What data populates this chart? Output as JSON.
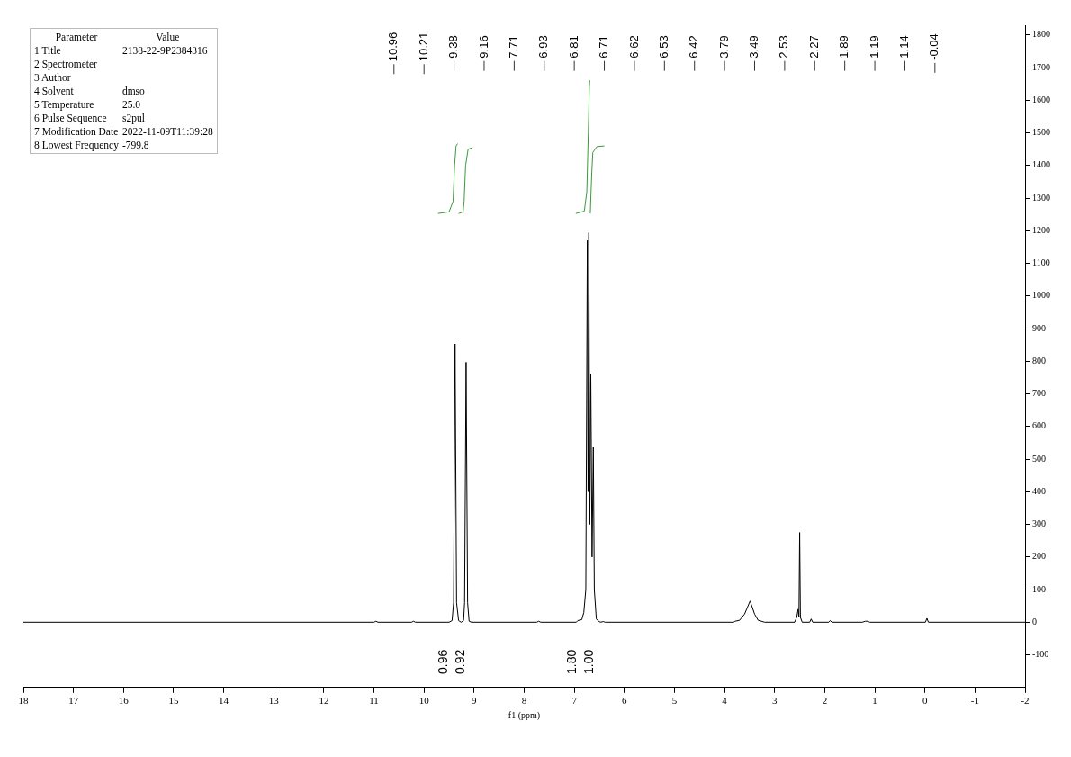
{
  "chart_data": [
    {
      "type": "line",
      "xlabel": "f1 (ppm)",
      "xlim": [
        18,
        -2
      ],
      "xticks": [
        18,
        17,
        16,
        15,
        14,
        13,
        12,
        11,
        10,
        9,
        8,
        7,
        6,
        5,
        4,
        3,
        2,
        1,
        0,
        -1,
        -2
      ],
      "ylim": [
        -200,
        1830
      ],
      "yticks": [
        -100,
        0,
        100,
        200,
        300,
        400,
        500,
        600,
        700,
        800,
        900,
        1000,
        1100,
        1200,
        1300,
        1400,
        1500,
        1600,
        1700,
        1800
      ],
      "legend": false,
      "marker": "none",
      "line_style": "solid",
      "series": [
        {
          "color": "#000000",
          "x": [
            18,
            11,
            10.96,
            10.92,
            10.25,
            10.21,
            10.17,
            9.5,
            9.44,
            9.41,
            9.38,
            9.35,
            9.31,
            9.26,
            9.21,
            9.19,
            9.16,
            9.13,
            9.1,
            9.05,
            7.75,
            7.71,
            7.67,
            6.96,
            6.93,
            6.85,
            6.81,
            6.77,
            6.74,
            6.725,
            6.71,
            6.69,
            6.67,
            6.645,
            6.62,
            6.6,
            6.56,
            6.53,
            6.48,
            6.42,
            6.38,
            3.82,
            3.79,
            3.7,
            3.6,
            3.49,
            3.4,
            3.33,
            3.2,
            2.6,
            2.56,
            2.53,
            2.515,
            2.5,
            2.485,
            2.45,
            2.3,
            2.27,
            2.24,
            1.92,
            1.89,
            1.86,
            1.25,
            1.19,
            1.14,
            1.1,
            -0.01,
            -0.04,
            -0.07,
            -2
          ],
          "values": [
            0,
            0,
            3,
            0,
            0,
            3,
            0,
            0,
            5,
            60,
            853,
            60,
            5,
            0,
            5,
            60,
            797,
            60,
            3,
            0,
            0,
            3,
            0,
            0,
            5,
            8,
            30,
            100,
            1170,
            400,
            1194,
            300,
            760,
            200,
            536,
            100,
            10,
            5,
            0,
            2,
            0,
            0,
            3,
            6,
            25,
            65,
            25,
            6,
            0,
            0,
            15,
            40,
            15,
            275,
            15,
            0,
            0,
            10,
            0,
            0,
            5,
            0,
            0,
            3,
            3,
            0,
            0,
            12,
            0,
            0
          ]
        },
        {
          "color": "#3a9a3a",
          "x": [
            9.72,
            9.5,
            9.42,
            9.39,
            9.36,
            9.33
          ],
          "values": [
            1253,
            1258,
            1290,
            1400,
            1460,
            1467
          ]
        },
        {
          "color": "#3a9a3a",
          "x": [
            9.31,
            9.22,
            9.2,
            9.17,
            9.12,
            9.03
          ],
          "values": [
            1253,
            1258,
            1290,
            1400,
            1450,
            1455
          ]
        },
        {
          "color": "#3a9a3a",
          "x": [
            6.97,
            6.8,
            6.75,
            6.72,
            6.7,
            6.69
          ],
          "values": [
            1253,
            1260,
            1320,
            1500,
            1640,
            1661
          ]
        },
        {
          "color": "#3a9a3a",
          "x": [
            6.68,
            6.67,
            6.65,
            6.63,
            6.55,
            6.4
          ],
          "values": [
            1253,
            1300,
            1380,
            1440,
            1458,
            1460
          ]
        }
      ],
      "annotations": [
        "10.96",
        "10.21",
        "9.38",
        "9.16",
        "7.71",
        "6.93",
        "6.81",
        "6.71",
        "6.62",
        "6.53",
        "6.42",
        "3.79",
        "3.49",
        "2.53",
        "2.27",
        "1.89",
        "1.19",
        "1.14",
        "-0.04"
      ]
    },
    {
      "type": "other",
      "annotations": [
        "0.96",
        "0.92",
        "1.80",
        "1.00"
      ]
    },
    {
      "type": "other",
      "annotations": [
        "Parameter\tValue",
        "1 Title\t2138-22-9P2384316",
        "2 Spectrometer",
        "3 Author",
        "4 Solvent\tdmso",
        "5 Temperature\t25.0",
        "6 Pulse Sequence\ts2pul",
        "7 Modification Date\t2022-11-09T11:39:28",
        "8 Lowest Frequency\t-799.8"
      ]
    }
  ]
}
